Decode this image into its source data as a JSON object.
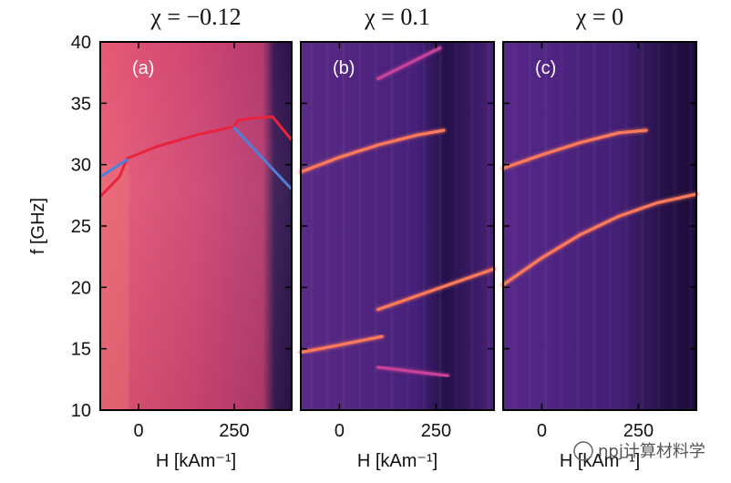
{
  "chart_data": [
    {
      "type": "heatmap",
      "panel_label": "(a)",
      "title": "χ = −0.12",
      "xlabel": "H [kAm⁻¹]",
      "ylabel": "f [GHz]",
      "xlim": [
        -100,
        400
      ],
      "ylim": [
        10,
        40
      ],
      "x_ticks": [
        0,
        250
      ],
      "y_ticks": [
        10,
        15,
        20,
        25,
        30,
        35,
        40
      ],
      "colormap": "magma",
      "series": [
        {
          "color": "#e8243c",
          "x": [
            -100,
            -50,
            -30,
            50,
            150,
            250,
            260,
            300,
            350,
            400
          ],
          "y": [
            27.4,
            29,
            30.5,
            31.5,
            32.4,
            33.1,
            33.6,
            33.8,
            33.9,
            32
          ]
        },
        {
          "color": "#4f7fd6",
          "x": [
            -100,
            -30
          ],
          "y": [
            29,
            30.4
          ]
        },
        {
          "color": "#4f7fd6",
          "x": [
            250,
            400
          ],
          "y": [
            33,
            28
          ]
        }
      ]
    },
    {
      "type": "heatmap",
      "panel_label": "(b)",
      "title": "χ = 0.1",
      "xlabel": "H [kAm⁻¹]",
      "xlim": [
        -100,
        400
      ],
      "ylim": [
        10,
        40
      ],
      "x_ticks": [
        0,
        250
      ],
      "colormap": "magma",
      "series": [
        {
          "color": "#ff7a5a",
          "x": [
            -100,
            0,
            100,
            200,
            270
          ],
          "y": [
            29.4,
            30.6,
            31.6,
            32.4,
            32.8
          ]
        },
        {
          "color": "#ff7a5a",
          "x": [
            -100,
            0,
            110
          ],
          "y": [
            14.7,
            15.3,
            16
          ]
        },
        {
          "color": "#ff7a5a",
          "x": [
            100,
            200,
            300,
            400
          ],
          "y": [
            18.2,
            19.3,
            20.4,
            21.5
          ]
        },
        {
          "color": "#c9429a",
          "x": [
            100,
            280
          ],
          "y": [
            13.5,
            12.8
          ]
        },
        {
          "color": "#c9429a",
          "x": [
            100,
            260
          ],
          "y": [
            37,
            39.5
          ]
        }
      ]
    },
    {
      "type": "heatmap",
      "panel_label": "(c)",
      "title": "χ = 0",
      "xlabel": "H [kAm⁻¹]",
      "xlim": [
        -100,
        400
      ],
      "ylim": [
        10,
        40
      ],
      "x_ticks": [
        0,
        250
      ],
      "colormap": "magma",
      "series": [
        {
          "color": "#ff7a5a",
          "x": [
            -100,
            0,
            100,
            200,
            270
          ],
          "y": [
            29.7,
            30.8,
            31.8,
            32.6,
            32.8
          ]
        },
        {
          "color": "#ff7a5a",
          "x": [
            -100,
            0,
            100,
            200,
            300,
            400
          ],
          "y": [
            20.2,
            22.4,
            24.3,
            25.8,
            26.9,
            27.6
          ]
        }
      ]
    }
  ],
  "watermark": "npj计算材料学"
}
